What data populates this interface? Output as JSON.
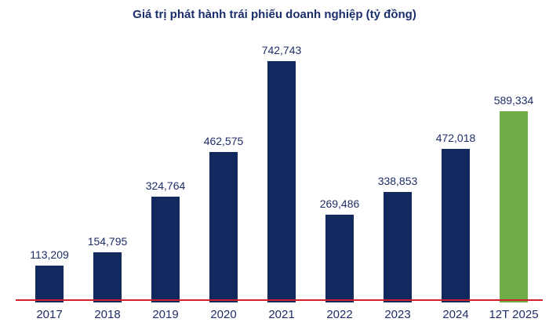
{
  "title": "Giá trị phát hành trái phiếu doanh nghiệp (tỷ đồng)",
  "colors": {
    "bar": "#12295F",
    "highlight_bar": "#70AD47",
    "title_text": "#1B2F6D",
    "label_text": "#1E2E66",
    "axis_line": "#D0202E",
    "background": "#FFFFFF"
  },
  "chart_data": {
    "type": "bar",
    "title": "Giá trị phát hành trái phiếu doanh nghiệp (tỷ đồng)",
    "categories": [
      "2017",
      "2018",
      "2019",
      "2020",
      "2021",
      "2022",
      "2023",
      "2024",
      "12T 2025"
    ],
    "values": [
      113209,
      154795,
      324764,
      462575,
      742743,
      269486,
      338853,
      472018,
      589334
    ],
    "value_labels": [
      "113,209",
      "154,795",
      "324,764",
      "462,575",
      "742,743",
      "269,486",
      "338,853",
      "472,018",
      "589,334"
    ],
    "xlabel": "",
    "ylabel": "",
    "ylim": [
      0,
      780000
    ],
    "grid": false,
    "legend": false,
    "bar_color": "#12295F",
    "highlight_index": 8,
    "highlight_color": "#70AD47",
    "baseline_color": "#D0202E"
  }
}
